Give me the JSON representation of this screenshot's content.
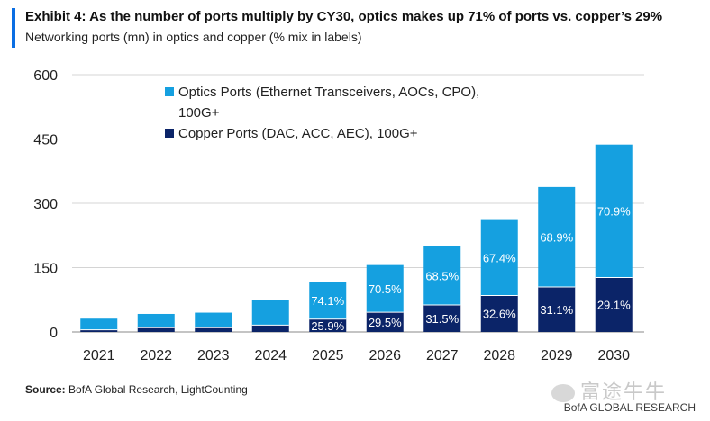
{
  "header": {
    "title": "Exhibit 4: As the number of ports multiply by CY30, optics makes up 71% of ports vs. copper’s 29%",
    "subtitle": "Networking ports (mn) in optics and copper (% mix in labels)"
  },
  "footer": {
    "source_label": "Source:",
    "source_text": "BofA Global Research, LightCounting",
    "watermark": "富途牛牛",
    "brand": "BofA GLOBAL RESEARCH"
  },
  "colors": {
    "optics": "#15a0e0",
    "copper": "#0b2468",
    "accent": "#0a6ee3"
  },
  "chart_data": {
    "type": "bar",
    "stacked": true,
    "categories": [
      "2021",
      "2022",
      "2023",
      "2024",
      "2025",
      "2026",
      "2027",
      "2028",
      "2029",
      "2030"
    ],
    "ylim": [
      0,
      600
    ],
    "yticks": [
      0,
      150,
      300,
      450,
      600
    ],
    "grid": true,
    "legend_position": "top-left",
    "series": [
      {
        "name": "Copper Ports (DAC, ACC, AEC), 100G+",
        "values": [
          5,
          10,
          10,
          16,
          30,
          46,
          63,
          85,
          105,
          127
        ],
        "labels": [
          "",
          "",
          "",
          "",
          "25.9%",
          "29.5%",
          "31.5%",
          "32.6%",
          "31.1%",
          "29.1%"
        ]
      },
      {
        "name": "Optics Ports (Ethernet Transceivers, AOCs, CPO), 100G+",
        "values": [
          26,
          32,
          35,
          58,
          86,
          110,
          137,
          176,
          233,
          310
        ],
        "labels": [
          "",
          "",
          "",
          "",
          "74.1%",
          "70.5%",
          "68.5%",
          "67.4%",
          "68.9%",
          "70.9%"
        ]
      }
    ]
  }
}
